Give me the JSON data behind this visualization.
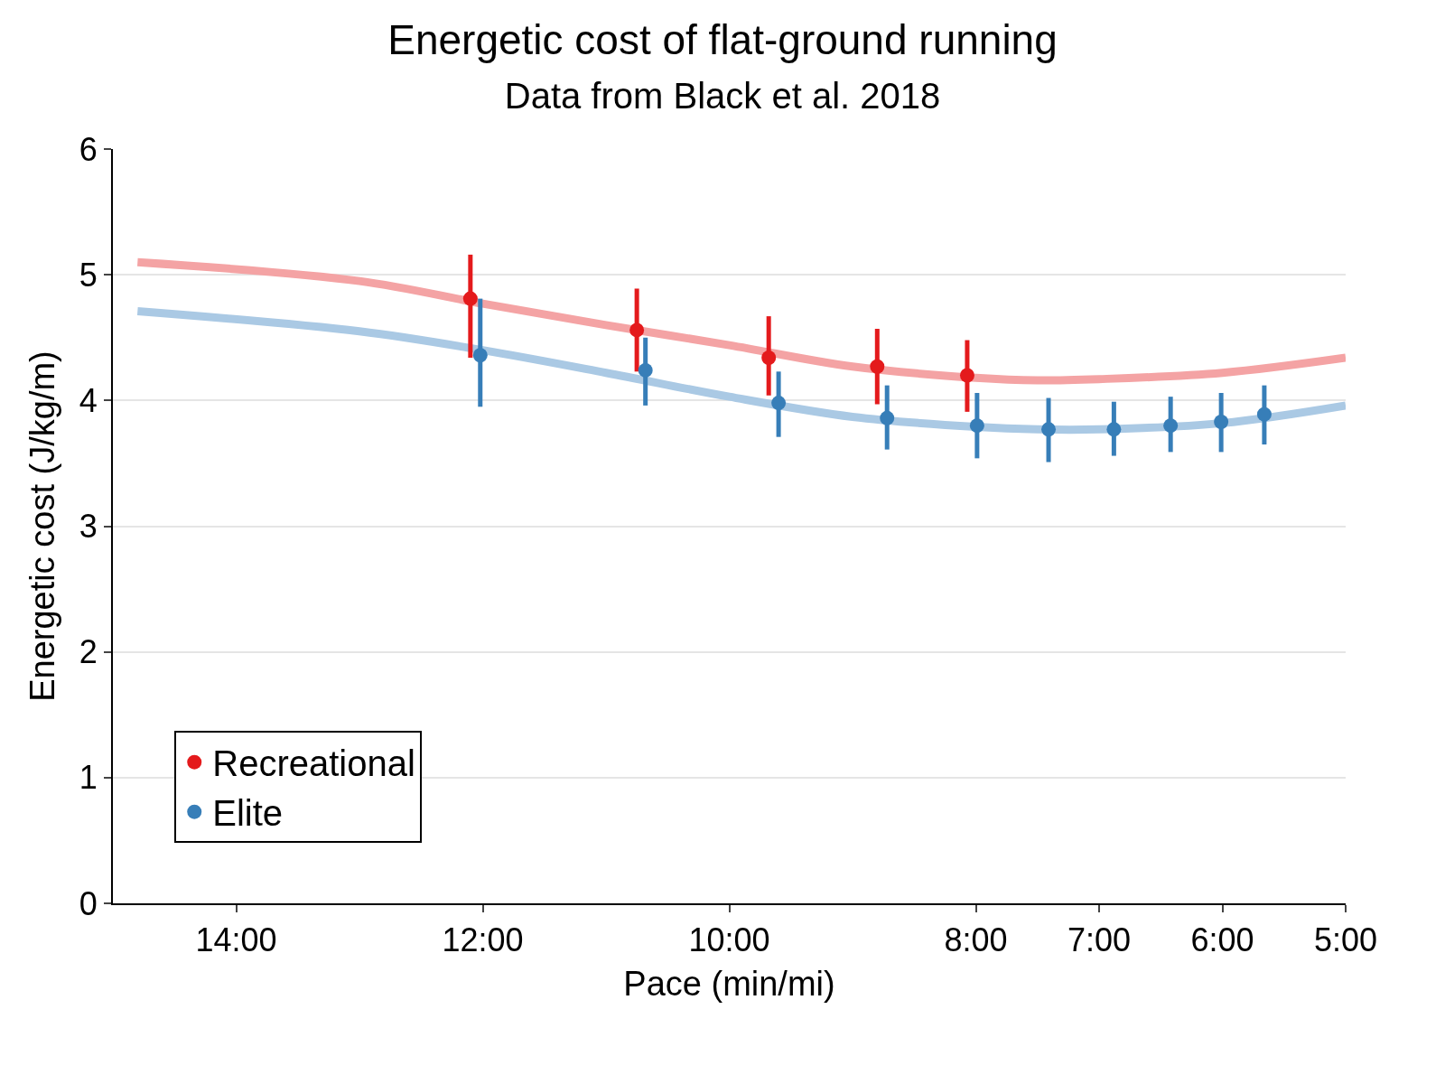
{
  "chart_data": {
    "type": "scatter",
    "title": "Energetic cost of flat-ground running",
    "subtitle": "Data from Black et al. 2018",
    "xlabel": "Pace (min/mi)",
    "ylabel": "Energetic cost (J/kg/m)",
    "xlim": [
      15,
      5
    ],
    "xticks": [
      {
        "value": 14,
        "label": "14:00"
      },
      {
        "value": 12,
        "label": "12:00"
      },
      {
        "value": 10,
        "label": "10:00"
      },
      {
        "value": 8,
        "label": "8:00"
      },
      {
        "value": 7,
        "label": "7:00"
      },
      {
        "value": 6,
        "label": "6:00"
      },
      {
        "value": 5,
        "label": "5:00"
      }
    ],
    "ylim": [
      0,
      6
    ],
    "yticks": [
      0,
      1,
      2,
      3,
      4,
      5,
      6
    ],
    "grid": "y",
    "legend": "bottom left",
    "marker": "circle",
    "series": [
      {
        "type": "line",
        "marker": "none",
        "color": "#f4a3a4",
        "x": [
          14.8,
          13,
          12,
          11,
          10,
          9,
          8,
          7.5,
          7,
          6,
          5
        ],
        "values": [
          5.1,
          4.95,
          4.77,
          4.6,
          4.44,
          4.27,
          4.18,
          4.16,
          4.17,
          4.22,
          4.34
        ]
      },
      {
        "type": "line",
        "marker": "none",
        "color": "#aac9e4",
        "x": [
          14.8,
          13,
          12,
          11,
          10,
          9,
          8,
          7.5,
          7,
          6,
          5
        ],
        "values": [
          4.71,
          4.55,
          4.4,
          4.22,
          4.03,
          3.87,
          3.79,
          3.77,
          3.77,
          3.82,
          3.96
        ]
      },
      {
        "name": "Recreational",
        "color": "#e41a1c",
        "x": [
          12.1,
          10.75,
          9.68,
          8.8,
          8.07
        ],
        "values": [
          4.81,
          4.56,
          4.34,
          4.27,
          4.2
        ],
        "errors": [
          [
            4.34,
            5.16
          ],
          [
            4.23,
            4.89
          ],
          [
            4.04,
            4.67
          ],
          [
            3.97,
            4.57
          ],
          [
            3.91,
            4.48
          ]
        ]
      },
      {
        "name": "Elite",
        "color": "#377eb8",
        "x": [
          12.02,
          10.68,
          9.6,
          8.72,
          7.99,
          7.41,
          6.88,
          6.42,
          6.01,
          5.66
        ],
        "values": [
          4.36,
          4.24,
          3.98,
          3.86,
          3.8,
          3.77,
          3.77,
          3.8,
          3.83,
          3.89
        ],
        "errors": [
          [
            3.95,
            4.81
          ],
          [
            3.96,
            4.5
          ],
          [
            3.71,
            4.23
          ],
          [
            3.61,
            4.12
          ],
          [
            3.54,
            4.06
          ],
          [
            3.51,
            4.02
          ],
          [
            3.56,
            3.99
          ],
          [
            3.59,
            4.03
          ],
          [
            3.59,
            4.06
          ],
          [
            3.65,
            4.12
          ]
        ]
      }
    ]
  }
}
